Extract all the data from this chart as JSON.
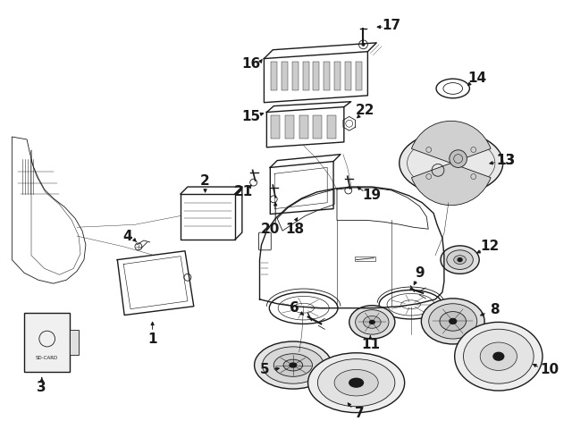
{
  "bg_color": "#ffffff",
  "line_color": "#1a1a1a",
  "figsize": [
    6.4,
    4.71
  ],
  "dpi": 100,
  "label_fs": 11,
  "label_fs_small": 9
}
